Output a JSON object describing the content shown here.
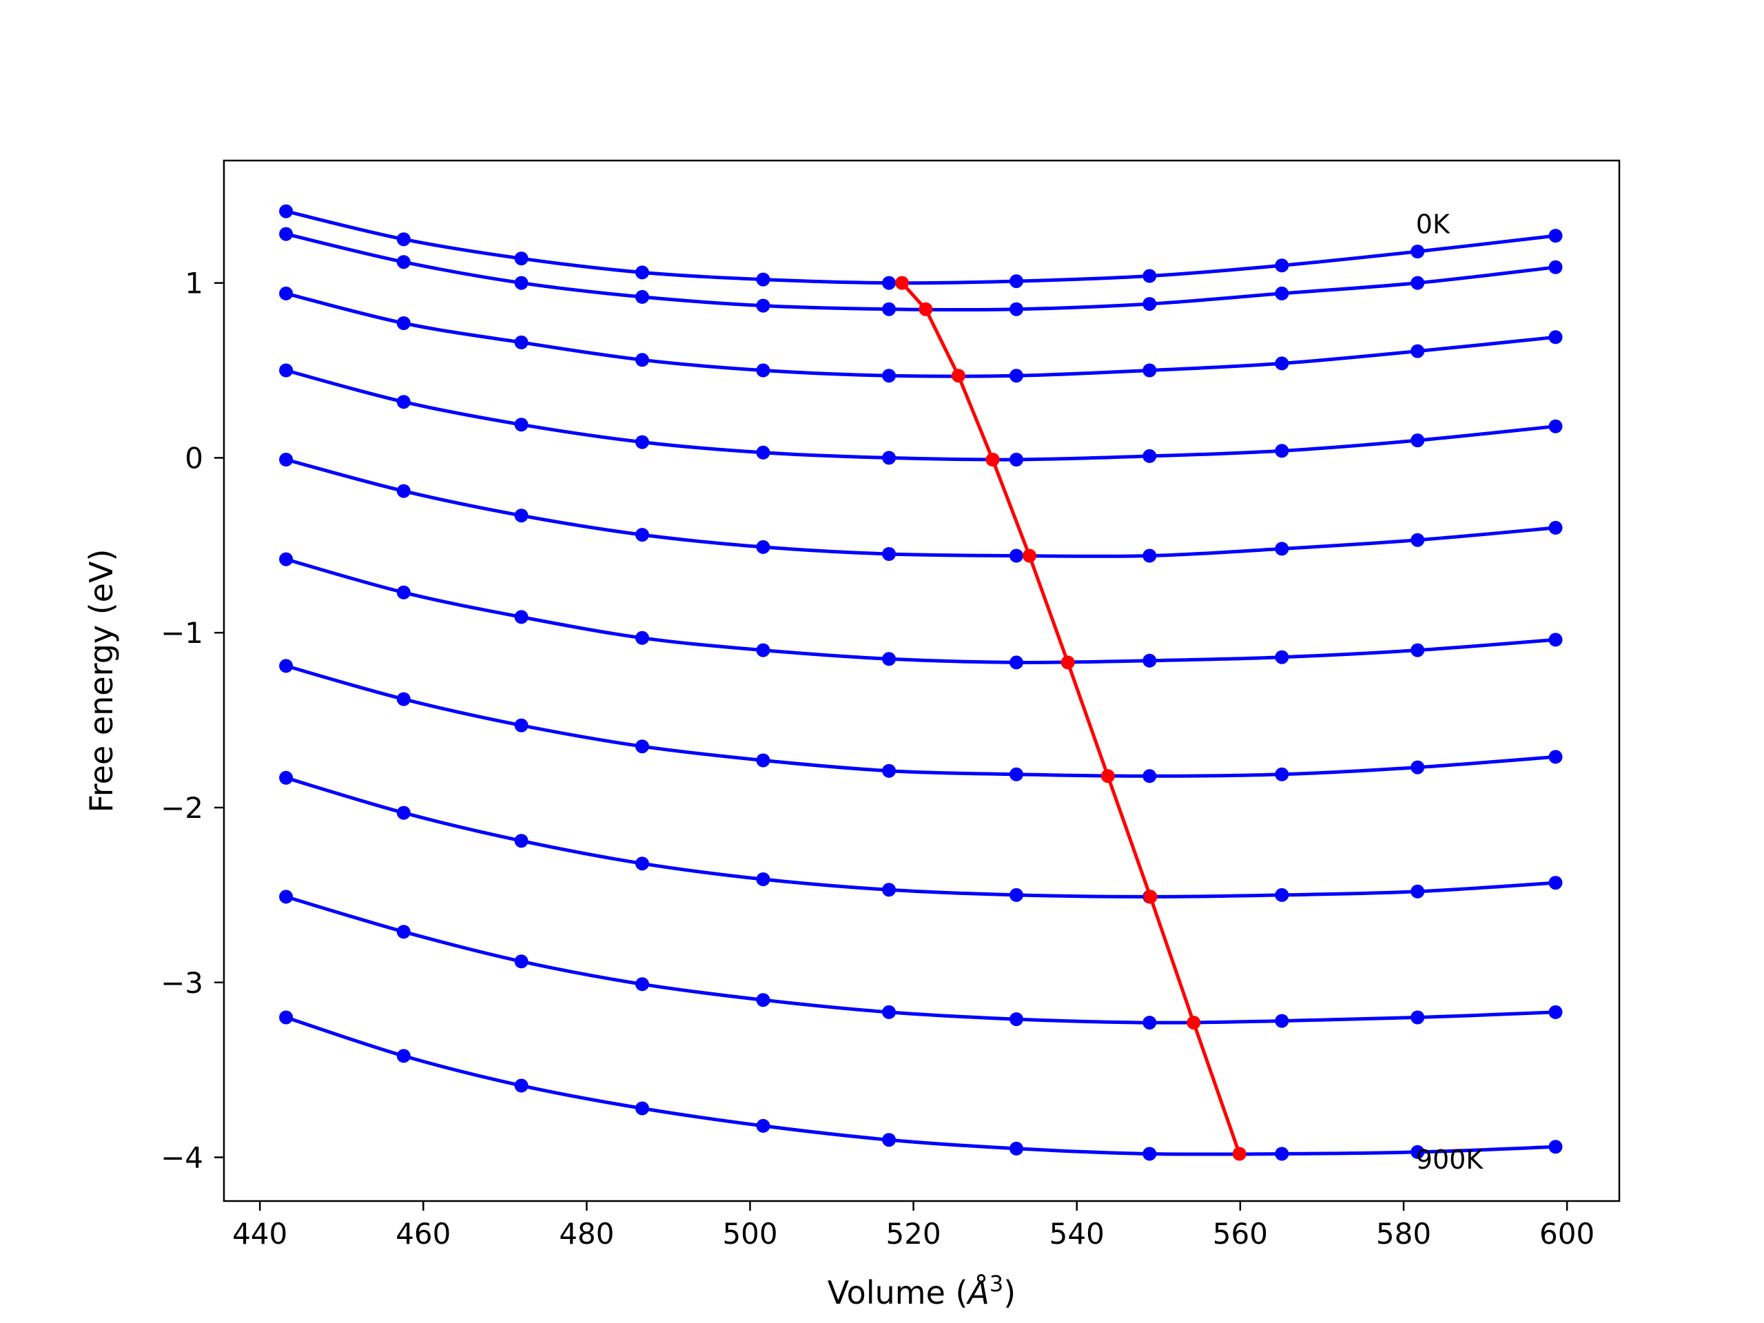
{
  "chart_data": {
    "type": "line",
    "title": "",
    "xlabel": "Volume (Å³)",
    "xlabel_parts": {
      "text": "Volume (",
      "unit": "Å",
      "sup": "3",
      "close": ")"
    },
    "ylabel": "Free energy (eV)",
    "xlim": [
      435.6,
      606.4
    ],
    "ylim": [
      -4.25,
      1.7
    ],
    "xticks": [
      440,
      460,
      480,
      500,
      520,
      540,
      560,
      580,
      600
    ],
    "yticks": [
      -4,
      -3,
      -2,
      -1,
      0,
      1
    ],
    "ytick_labels": [
      "−4",
      "−3",
      "−2",
      "−1",
      "0",
      "1"
    ],
    "grid": false,
    "legend": "none",
    "x": [
      443.2,
      457.6,
      472.0,
      486.8,
      501.6,
      517.0,
      532.6,
      548.9,
      565.1,
      581.7,
      598.6
    ],
    "series": [
      {
        "values": [
          1.41,
          1.25,
          1.14,
          1.06,
          1.02,
          1.0,
          1.01,
          1.04,
          1.1,
          1.18,
          1.27
        ]
      },
      {
        "values": [
          1.28,
          1.12,
          1.0,
          0.92,
          0.87,
          0.85,
          0.85,
          0.88,
          0.94,
          1.0,
          1.09
        ]
      },
      {
        "values": [
          0.94,
          0.77,
          0.66,
          0.56,
          0.5,
          0.47,
          0.47,
          0.5,
          0.54,
          0.61,
          0.69
        ]
      },
      {
        "values": [
          0.5,
          0.32,
          0.19,
          0.09,
          0.03,
          0.0,
          -0.01,
          0.01,
          0.04,
          0.1,
          0.18
        ]
      },
      {
        "values": [
          -0.01,
          -0.19,
          -0.33,
          -0.44,
          -0.51,
          -0.55,
          -0.56,
          -0.56,
          -0.52,
          -0.47,
          -0.4
        ]
      },
      {
        "values": [
          -0.58,
          -0.77,
          -0.91,
          -1.03,
          -1.1,
          -1.15,
          -1.17,
          -1.16,
          -1.14,
          -1.1,
          -1.04
        ]
      },
      {
        "values": [
          -1.19,
          -1.38,
          -1.53,
          -1.65,
          -1.73,
          -1.79,
          -1.81,
          -1.82,
          -1.81,
          -1.77,
          -1.71
        ]
      },
      {
        "values": [
          -1.83,
          -2.03,
          -2.19,
          -2.32,
          -2.41,
          -2.47,
          -2.5,
          -2.51,
          -2.5,
          -2.48,
          -2.43
        ]
      },
      {
        "values": [
          -2.51,
          -2.71,
          -2.88,
          -3.01,
          -3.1,
          -3.17,
          -3.21,
          -3.23,
          -3.22,
          -3.2,
          -3.17
        ]
      },
      {
        "values": [
          -3.2,
          -3.42,
          -3.59,
          -3.72,
          -3.82,
          -3.9,
          -3.95,
          -3.98,
          -3.98,
          -3.97,
          -3.94
        ]
      }
    ],
    "minima": {
      "x": [
        518.6,
        521.5,
        525.5,
        529.7,
        534.2,
        538.9,
        543.8,
        549.0,
        554.3,
        559.9
      ],
      "y": [
        1.0,
        0.85,
        0.47,
        -0.01,
        -0.56,
        -1.17,
        -1.82,
        -2.51,
        -3.23,
        -3.98
      ]
    },
    "annotations": [
      {
        "text": "0K",
        "x": 581.5,
        "y": 1.34
      },
      {
        "text": "900K",
        "x": 581.5,
        "y": -4.01
      }
    ],
    "colors": {
      "series": "#0000ff",
      "minima": "#ff0000"
    }
  }
}
